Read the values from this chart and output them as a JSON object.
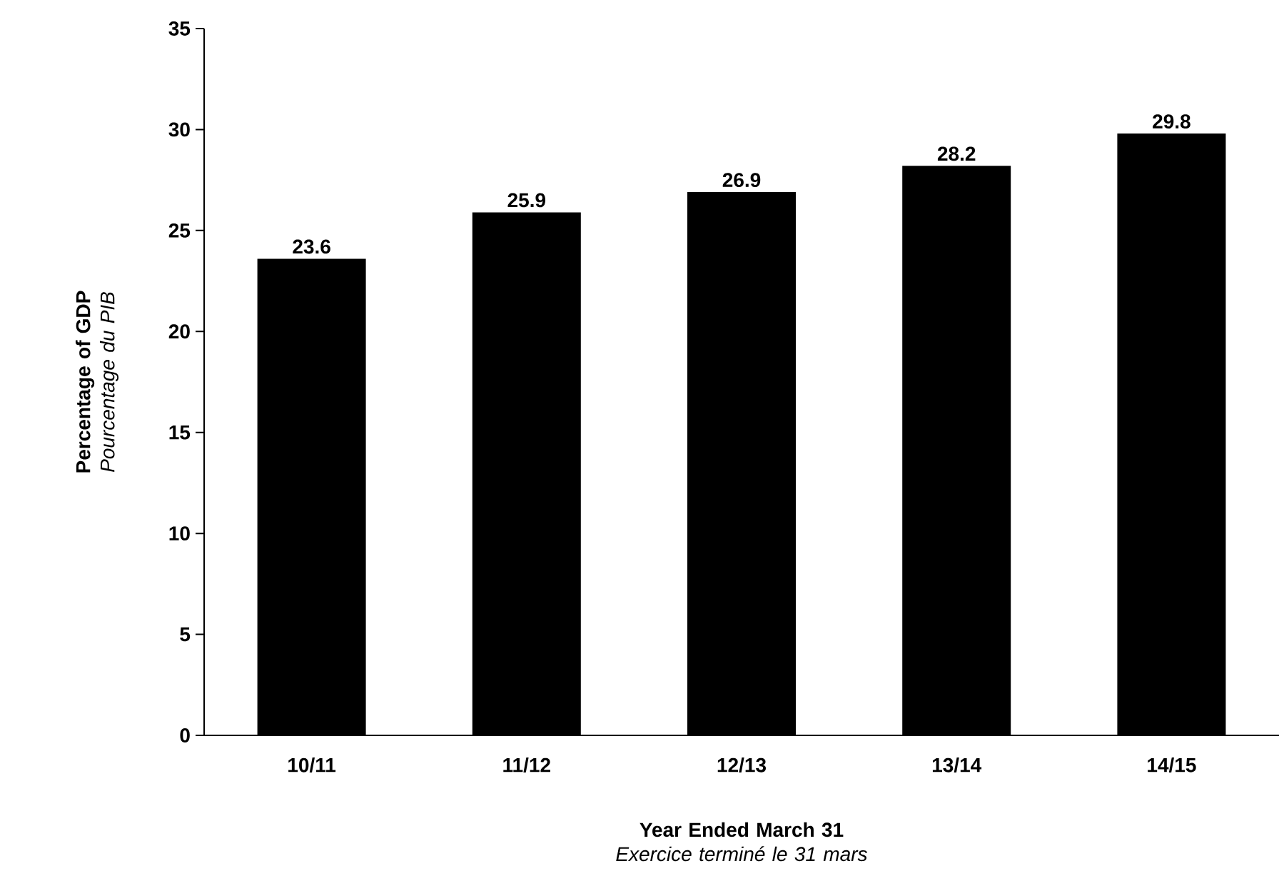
{
  "chart_data": {
    "type": "bar",
    "xlabel": "**Year Ended March 31** *Exercice terminé le 31 mars*",
    "ylabel": "**Percentage of GDP** *Pourcentage du PIB*",
    "categories": [
      "10/11",
      "11/12",
      "12/13",
      "13/14",
      "14/15"
    ],
    "values": [
      23.6,
      25.9,
      26.9,
      28.2,
      29.8
    ],
    "color": "#000000",
    "ylim": [
      0,
      35
    ],
    "yticks": [
      0,
      5,
      10,
      15,
      20,
      25,
      30,
      35
    ],
    "data_labels": true,
    "grid": false,
    "legend": false
  }
}
